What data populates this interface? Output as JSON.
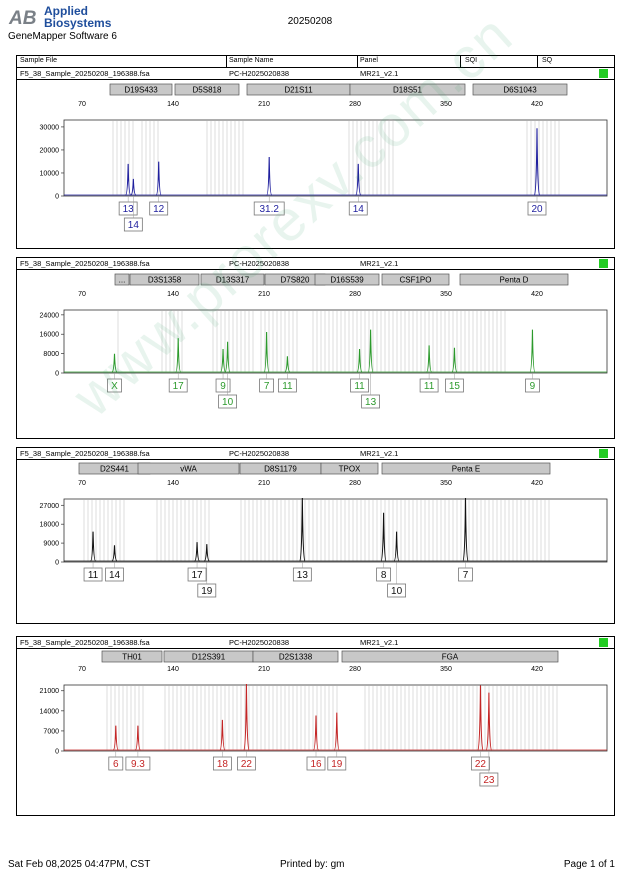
{
  "header": {
    "logo_line1": "Applied",
    "logo_line2": "Biosystems",
    "logo_mark": "AB",
    "software": "GeneMapper Software 6",
    "title": "20250208"
  },
  "table_header": {
    "sample_file": "Sample File",
    "sample_name": "Sample Name",
    "panel": "Panel",
    "sqi": "SQI",
    "sq": "SQ"
  },
  "x_ticks": [
    "70",
    "140",
    "210",
    "280",
    "350",
    "420"
  ],
  "panels": [
    {
      "file": "F5_38_Sample_20250208_196388.fsa",
      "sample": "PC-H2025020838",
      "panel_name": "MR21_v2.1",
      "color": "#1f1f9e",
      "y_ticks": [
        "30000",
        "20000",
        "10000",
        "0"
      ],
      "y_max": 33000,
      "loci": [
        "D19S433",
        "D5S818",
        "D21S11",
        "D18S51",
        "D6S1043"
      ],
      "alleles": [
        "13",
        "14",
        "12",
        "31.2",
        "14",
        "20"
      ],
      "peaks": [
        {
          "size": 105.5,
          "height": 13500
        },
        {
          "size": 109.5,
          "height": 7000
        },
        {
          "size": 129,
          "height": 14500
        },
        {
          "size": 214,
          "height": 16500
        },
        {
          "size": 282.5,
          "height": 13500
        },
        {
          "size": 420,
          "height": 29000
        }
      ]
    },
    {
      "file": "F5_38_Sample_20250208_196388.fsa",
      "sample": "PC-H2025020838",
      "panel_name": "MR21_v2.1",
      "color": "#2c9a2c",
      "y_ticks": [
        "24000",
        "16000",
        "8000",
        "0"
      ],
      "y_max": 26000,
      "loci": [
        "...",
        "D3S1358",
        "D13S317",
        "D7S820",
        "D16S539",
        "CSF1PO",
        "Penta D"
      ],
      "alleles": [
        "X",
        "17",
        "9",
        "10",
        "7",
        "11",
        "11",
        "13",
        "11",
        "15",
        "9"
      ],
      "peaks": [
        {
          "size": 95,
          "height": 7500
        },
        {
          "size": 144,
          "height": 14000
        },
        {
          "size": 178.5,
          "height": 9500
        },
        {
          "size": 182,
          "height": 12500
        },
        {
          "size": 212,
          "height": 16500
        },
        {
          "size": 228,
          "height": 6500
        },
        {
          "size": 283.5,
          "height": 9500
        },
        {
          "size": 292,
          "height": 17500
        },
        {
          "size": 337,
          "height": 11000
        },
        {
          "size": 356.5,
          "height": 10000
        },
        {
          "size": 416.5,
          "height": 17500
        }
      ]
    },
    {
      "file": "F5_38_Sample_20250208_196388.fsa",
      "sample": "PC-H2025020838",
      "panel_name": "MR21_v2.1",
      "color": "#111111",
      "y_ticks": [
        "27000",
        "18000",
        "9000",
        "0"
      ],
      "y_max": 30000,
      "loci": [
        "D2S441",
        "vWA",
        "D8S1179",
        "TPOX",
        "Penta E"
      ],
      "alleles": [
        "11",
        "14",
        "17",
        "19",
        "13",
        "8",
        "10",
        "7"
      ],
      "peaks": [
        {
          "size": 78.5,
          "height": 14000
        },
        {
          "size": 95,
          "height": 7500
        },
        {
          "size": 158.5,
          "height": 9000
        },
        {
          "size": 166,
          "height": 8000
        },
        {
          "size": 239.5,
          "height": 31000
        },
        {
          "size": 302,
          "height": 23000
        },
        {
          "size": 312,
          "height": 14000
        },
        {
          "size": 365,
          "height": 31000
        }
      ]
    },
    {
      "file": "F5_38_Sample_20250208_196388.fsa",
      "sample": "PC-H2025020838",
      "panel_name": "MR21_v2.1",
      "color": "#c42525",
      "y_ticks": [
        "21000",
        "14000",
        "7000",
        "0"
      ],
      "y_max": 23000,
      "loci": [
        "TH01",
        "D12S391",
        "D2S1338",
        "FGA"
      ],
      "alleles": [
        "6",
        "9.3",
        "18",
        "22",
        "16",
        "19",
        "22",
        "23"
      ],
      "peaks": [
        {
          "size": 96,
          "height": 8500
        },
        {
          "size": 113,
          "height": 8500
        },
        {
          "size": 178,
          "height": 10500
        },
        {
          "size": 196.5,
          "height": 23500
        },
        {
          "size": 250,
          "height": 12000
        },
        {
          "size": 266,
          "height": 13000
        },
        {
          "size": 376.5,
          "height": 22500
        },
        {
          "size": 383,
          "height": 20000
        }
      ]
    }
  ],
  "footer": {
    "datetime": "Sat Feb 08,2025 04:47PM, CST",
    "printed_by": "Printed by: gm",
    "page": "Page 1 of 1"
  },
  "watermark": "www.prorexv.com.cn"
}
